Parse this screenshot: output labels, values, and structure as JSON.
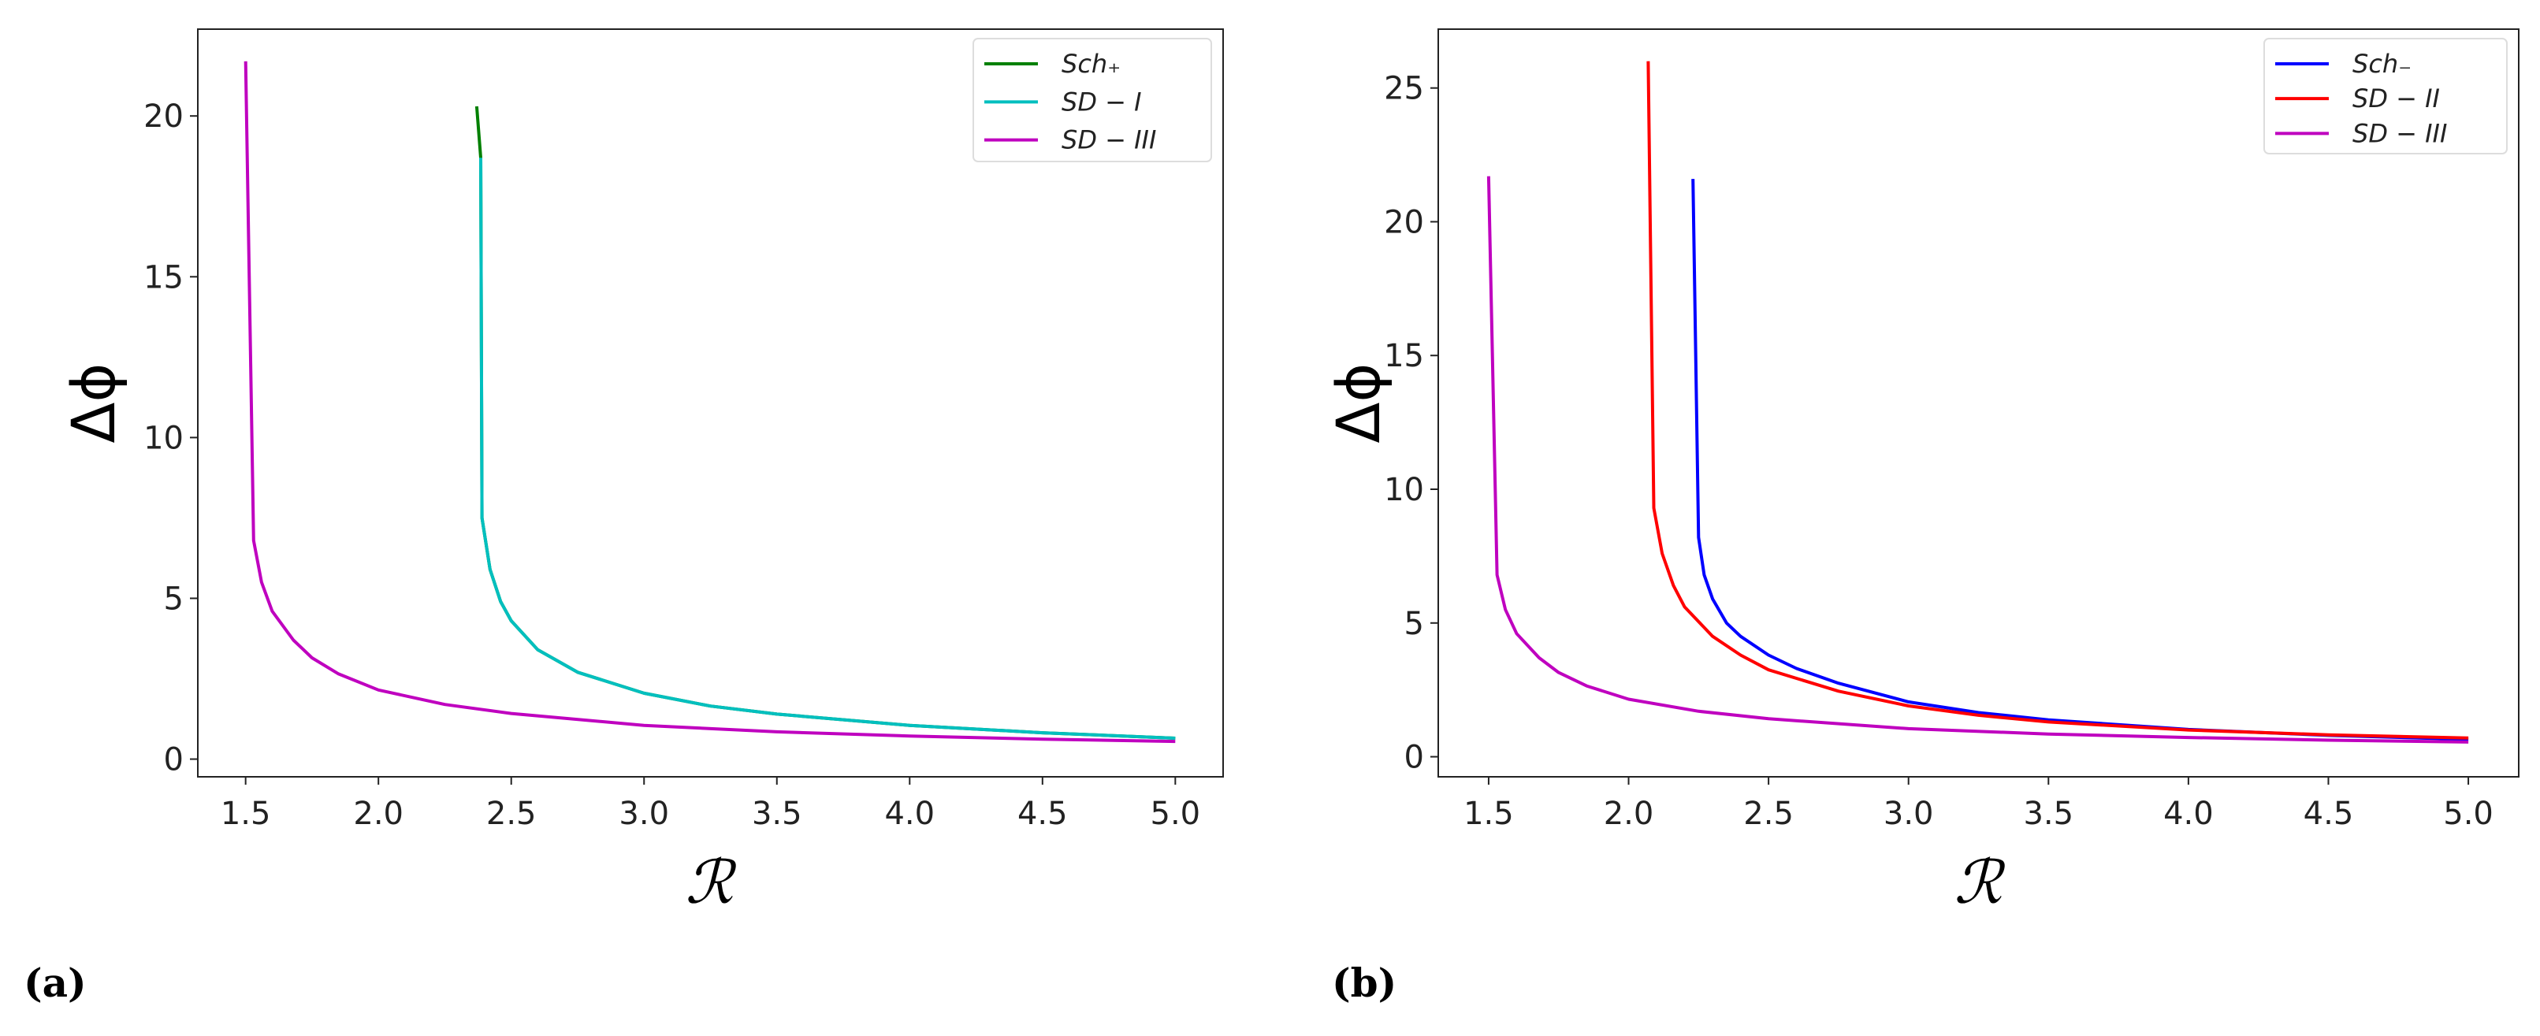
{
  "chart_data": [
    {
      "type": "line",
      "panel_label": "(a)",
      "xlabel": "ℛ",
      "ylabel": "Δϕ",
      "xlim": [
        1.32,
        5.18
      ],
      "ylim": [
        -0.55,
        22.7
      ],
      "xticks": [
        "1.5",
        "2.0",
        "2.5",
        "3.0",
        "3.5",
        "4.0",
        "4.5",
        "5.0"
      ],
      "yticks": [
        "0",
        "5",
        "10",
        "15",
        "20"
      ],
      "grid": false,
      "legend_position": "top-right",
      "series": [
        {
          "name": "Sch₊",
          "color": "#008000",
          "x": [
            2.37,
            2.385,
            2.39,
            2.42,
            2.46,
            2.5,
            2.6,
            2.75,
            3.0,
            3.25,
            3.5,
            4.0,
            4.5,
            5.0
          ],
          "y": [
            20.3,
            18.7,
            7.5,
            5.9,
            4.9,
            4.3,
            3.4,
            2.7,
            2.05,
            1.65,
            1.4,
            1.05,
            0.82,
            0.65
          ]
        },
        {
          "name": "SD − I",
          "color": "#00bfbf",
          "x": [
            2.385,
            2.39,
            2.42,
            2.46,
            2.5,
            2.6,
            2.75,
            3.0,
            3.25,
            3.5,
            4.0,
            4.5,
            5.0
          ],
          "y": [
            18.7,
            7.5,
            5.9,
            4.9,
            4.3,
            3.4,
            2.7,
            2.05,
            1.65,
            1.4,
            1.05,
            0.82,
            0.65
          ]
        },
        {
          "name": "SD − III",
          "color": "#bf00bf",
          "x": [
            1.5,
            1.53,
            1.56,
            1.6,
            1.68,
            1.75,
            1.85,
            2.0,
            2.25,
            2.5,
            3.0,
            3.5,
            4.0,
            4.5,
            5.0
          ],
          "y": [
            21.7,
            6.8,
            5.5,
            4.6,
            3.7,
            3.15,
            2.65,
            2.15,
            1.7,
            1.42,
            1.05,
            0.85,
            0.72,
            0.62,
            0.55
          ]
        }
      ]
    },
    {
      "type": "line",
      "panel_label": "(b)",
      "xlabel": "ℛ",
      "ylabel": "Δϕ",
      "xlim": [
        1.32,
        5.18
      ],
      "ylim": [
        -0.75,
        27.2
      ],
      "xticks": [
        "1.5",
        "2.0",
        "2.5",
        "3.0",
        "3.5",
        "4.0",
        "4.5",
        "5.0"
      ],
      "yticks": [
        "0",
        "5",
        "10",
        "15",
        "20",
        "25"
      ],
      "grid": false,
      "legend_position": "top-right",
      "series": [
        {
          "name": "Sch₋",
          "color": "#0000ff",
          "x": [
            2.23,
            2.25,
            2.27,
            2.3,
            2.35,
            2.4,
            2.5,
            2.6,
            2.75,
            3.0,
            3.25,
            3.5,
            4.0,
            4.5,
            5.0
          ],
          "y": [
            21.6,
            8.2,
            6.8,
            5.9,
            5.0,
            4.5,
            3.8,
            3.3,
            2.75,
            2.05,
            1.65,
            1.38,
            1.02,
            0.8,
            0.65
          ]
        },
        {
          "name": "SD − II",
          "color": "#ff0000",
          "x": [
            2.07,
            2.09,
            2.12,
            2.16,
            2.2,
            2.3,
            2.4,
            2.5,
            2.75,
            3.0,
            3.25,
            3.5,
            4.0,
            4.5,
            5.0
          ],
          "y": [
            26.0,
            9.3,
            7.6,
            6.4,
            5.6,
            4.5,
            3.8,
            3.25,
            2.45,
            1.9,
            1.55,
            1.3,
            1.0,
            0.82,
            0.7
          ]
        },
        {
          "name": "SD − III",
          "color": "#bf00bf",
          "x": [
            1.5,
            1.53,
            1.56,
            1.6,
            1.68,
            1.75,
            1.85,
            2.0,
            2.25,
            2.5,
            3.0,
            3.5,
            4.0,
            4.5,
            5.0
          ],
          "y": [
            21.7,
            6.8,
            5.5,
            4.6,
            3.7,
            3.15,
            2.65,
            2.15,
            1.7,
            1.42,
            1.05,
            0.85,
            0.72,
            0.62,
            0.55
          ]
        }
      ]
    }
  ]
}
